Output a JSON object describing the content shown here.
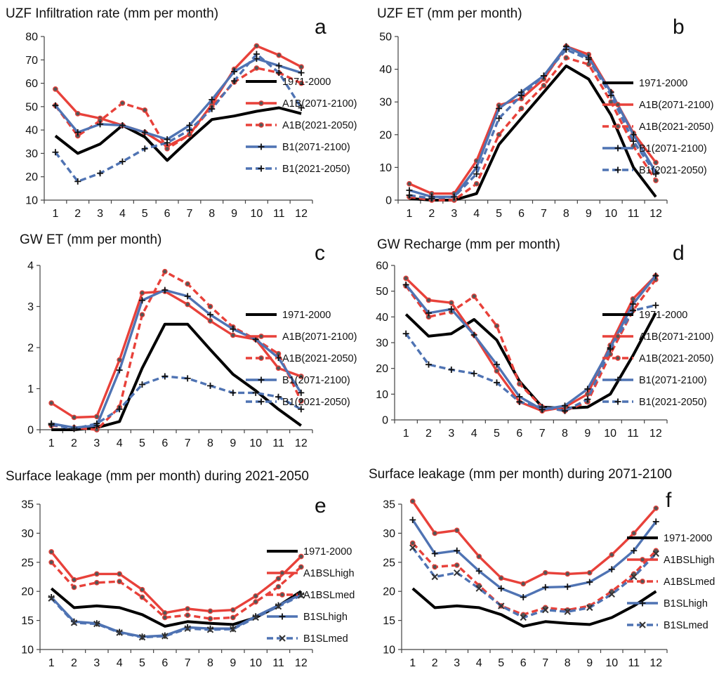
{
  "chart_data": [
    {
      "type": "line",
      "letter": "a",
      "title": "UZF Infiltration rate (mm per month)",
      "ylim": [
        10,
        80
      ],
      "yticks": [
        10,
        20,
        30,
        40,
        50,
        60,
        70,
        80
      ],
      "categories": [
        "1",
        "2",
        "3",
        "4",
        "5",
        "6",
        "7",
        "8",
        "9",
        "10",
        "11",
        "12"
      ],
      "series": [
        {
          "name": "1971-2000",
          "color": "#000000",
          "dash": false,
          "marker": "none",
          "values": [
            37.5,
            30,
            34,
            42,
            37,
            27,
            36,
            44.5,
            46,
            48,
            49.5,
            47
          ]
        },
        {
          "name": "A1B(2071-2100)",
          "color": "#e8413a",
          "dash": false,
          "marker": "circle",
          "values": [
            57.5,
            47,
            45,
            42,
            39,
            33,
            38,
            51,
            66,
            76,
            72,
            67
          ]
        },
        {
          "name": "A1B(2021-2050)",
          "color": "#e8413a",
          "dash": true,
          "marker": "circle",
          "values": [
            50.5,
            37.5,
            44,
            51.5,
            48.5,
            32,
            38,
            50,
            60.5,
            66.5,
            64.5,
            60
          ]
        },
        {
          "name": "B1(2071-2100)",
          "color": "#4f73b3",
          "dash": false,
          "marker": "plus",
          "values": [
            50.5,
            39,
            42.5,
            42,
            39,
            36,
            42,
            53,
            65,
            70.5,
            67.5,
            64.5
          ]
        },
        {
          "name": "B1(2021-2050)",
          "color": "#4f73b3",
          "dash": true,
          "marker": "plus",
          "values": [
            30.5,
            18,
            21.5,
            26.5,
            32,
            34.5,
            40,
            49,
            61,
            72.5,
            64.5,
            49.5
          ]
        }
      ]
    },
    {
      "type": "line",
      "letter": "b",
      "title": "UZF ET (mm per month)",
      "ylim": [
        0,
        50
      ],
      "yticks": [
        0,
        10,
        20,
        30,
        40,
        50
      ],
      "categories": [
        "1",
        "2",
        "3",
        "4",
        "5",
        "6",
        "7",
        "8",
        "9",
        "10",
        "11",
        "12"
      ],
      "series": [
        {
          "name": "1971-2000",
          "color": "#000000",
          "dash": false,
          "marker": "none",
          "values": [
            0.5,
            0,
            0,
            2,
            17,
            25,
            33,
            41,
            37,
            26,
            10,
            1
          ]
        },
        {
          "name": "A1B(2071-2100)",
          "color": "#e8413a",
          "dash": false,
          "marker": "circle",
          "values": [
            5,
            2,
            2,
            12,
            29,
            31,
            37,
            47,
            44.5,
            33,
            20.5,
            11.5
          ]
        },
        {
          "name": "A1B(2021-2050)",
          "color": "#e8413a",
          "dash": true,
          "marker": "circle",
          "values": [
            1,
            0,
            0,
            5,
            20,
            28,
            35,
            43.5,
            41.5,
            30,
            16.5,
            6
          ]
        },
        {
          "name": "B1(2071-2100)",
          "color": "#4f73b3",
          "dash": false,
          "marker": "plus",
          "values": [
            3,
            1,
            1,
            10,
            28,
            33,
            38,
            47,
            43.5,
            33,
            20,
            8.5
          ]
        },
        {
          "name": "B1(2021-2050)",
          "color": "#4f73b3",
          "dash": true,
          "marker": "plus",
          "values": [
            1.5,
            0.5,
            1,
            8,
            25,
            32,
            38,
            46,
            43,
            32,
            18,
            8
          ]
        }
      ]
    },
    {
      "type": "line",
      "letter": "c",
      "title": "GW ET (mm per month)",
      "ylim": [
        0,
        4
      ],
      "yticks": [
        0,
        1,
        2,
        3,
        4
      ],
      "categories": [
        "1",
        "2",
        "3",
        "4",
        "5",
        "6",
        "7",
        "8",
        "9",
        "10",
        "11",
        "12"
      ],
      "series": [
        {
          "name": "1971-2000",
          "color": "#000000",
          "dash": false,
          "marker": "none",
          "values": [
            0,
            0,
            0.05,
            0.2,
            1.5,
            2.57,
            2.57,
            1.95,
            1.35,
            0.95,
            0.5,
            0.1
          ]
        },
        {
          "name": "A1B(2071-2100)",
          "color": "#e8413a",
          "dash": false,
          "marker": "circle",
          "values": [
            0.65,
            0.3,
            0.32,
            1.7,
            3.33,
            3.37,
            3.05,
            2.65,
            2.3,
            2.2,
            1.5,
            1.3
          ]
        },
        {
          "name": "A1B(2021-2050)",
          "color": "#e8413a",
          "dash": true,
          "marker": "circle",
          "values": [
            0.1,
            0.05,
            0,
            0.55,
            2.8,
            3.85,
            3.55,
            3.0,
            2.5,
            2.2,
            1.85,
            0.7
          ]
        },
        {
          "name": "B1(2071-2100)",
          "color": "#4f73b3",
          "dash": false,
          "marker": "plus",
          "values": [
            0.15,
            0.05,
            0.1,
            1.45,
            3.15,
            3.4,
            3.25,
            2.8,
            2.45,
            2.2,
            1.75,
            0.9
          ]
        },
        {
          "name": "B1(2021-2050)",
          "color": "#4f73b3",
          "dash": true,
          "marker": "plus",
          "values": [
            0.12,
            0.02,
            0.15,
            0.5,
            1.1,
            1.3,
            1.25,
            1.07,
            0.9,
            0.9,
            0.8,
            0.5
          ]
        }
      ]
    },
    {
      "type": "line",
      "letter": "d",
      "title": "GW Recharge (mm per month)",
      "ylim": [
        0,
        60
      ],
      "yticks": [
        0,
        10,
        20,
        30,
        40,
        50,
        60
      ],
      "categories": [
        "1",
        "2",
        "3",
        "4",
        "5",
        "6",
        "7",
        "8",
        "9",
        "10",
        "11",
        "12"
      ],
      "series": [
        {
          "name": "1971-2000",
          "color": "#000000",
          "dash": false,
          "marker": "none",
          "values": [
            41,
            32.5,
            33.5,
            39,
            31,
            15,
            5,
            4.5,
            5,
            10,
            25,
            41.5
          ]
        },
        {
          "name": "A1B(2071-2100)",
          "color": "#e8413a",
          "dash": false,
          "marker": "circle",
          "values": [
            55,
            46.5,
            45.5,
            33,
            19,
            7,
            3.5,
            5,
            10,
            29,
            47,
            56
          ]
        },
        {
          "name": "A1B(2021-2050)",
          "color": "#e8413a",
          "dash": true,
          "marker": "circle",
          "values": [
            52,
            40,
            42,
            48,
            36.5,
            14,
            5,
            3.5,
            7,
            25.5,
            42.5,
            54.5
          ]
        },
        {
          "name": "B1(2071-2100)",
          "color": "#4f73b3",
          "dash": false,
          "marker": "plus",
          "values": [
            52.5,
            41.5,
            43,
            33,
            21.5,
            9,
            4,
            5.5,
            12,
            28,
            45,
            56
          ]
        },
        {
          "name": "B1(2021-2050)",
          "color": "#4f73b3",
          "dash": true,
          "marker": "plus",
          "values": [
            33.5,
            21.5,
            19.5,
            18,
            14.5,
            7,
            5,
            3.5,
            8,
            27.5,
            42.5,
            44.5
          ]
        }
      ]
    },
    {
      "type": "line",
      "letter": "e",
      "title": "Surface leakage (mm per month) during 2021-2050",
      "ylim": [
        10,
        35
      ],
      "yticks": [
        10,
        15,
        20,
        25,
        30,
        35
      ],
      "categories": [
        "1",
        "2",
        "3",
        "4",
        "5",
        "6",
        "7",
        "8",
        "9",
        "10",
        "11",
        "12"
      ],
      "series": [
        {
          "name": "1971-2000",
          "color": "#000000",
          "dash": false,
          "marker": "none",
          "values": [
            20.5,
            17.2,
            17.5,
            17.2,
            16,
            14,
            14.8,
            14.5,
            14.3,
            15.5,
            17.5,
            20
          ]
        },
        {
          "name": "A1BSLhigh",
          "color": "#e8413a",
          "dash": false,
          "marker": "circle",
          "values": [
            26.8,
            22,
            23,
            23,
            20.3,
            16.3,
            17,
            16.6,
            16.8,
            19.2,
            22.2,
            26
          ]
        },
        {
          "name": "A1BSLmed",
          "color": "#e8413a",
          "dash": true,
          "marker": "circle",
          "values": [
            25,
            20.7,
            21.5,
            21.7,
            19,
            15.5,
            15.9,
            15.3,
            15.5,
            18.2,
            20.8,
            24.2
          ]
        },
        {
          "name": "B1SLhigh",
          "color": "#4f73b3",
          "dash": false,
          "marker": "plus",
          "values": [
            19,
            14.8,
            14.5,
            13,
            12.2,
            12.4,
            13.8,
            13.6,
            13.6,
            15.7,
            17.6,
            19.5
          ]
        },
        {
          "name": "B1SLmed",
          "color": "#4f73b3",
          "dash": true,
          "marker": "x",
          "values": [
            18.8,
            14.6,
            14.4,
            12.9,
            12.1,
            12.3,
            13.6,
            13.4,
            13.5,
            15.5,
            17.4,
            19.3
          ]
        }
      ]
    },
    {
      "type": "line",
      "letter": "f",
      "title": "Surface leakage (mm per month) during 2071-2100",
      "ylim": [
        10,
        35
      ],
      "yticks": [
        10,
        15,
        20,
        25,
        30,
        35
      ],
      "categories": [
        "1",
        "2",
        "3",
        "4",
        "5",
        "6",
        "7",
        "8",
        "9",
        "10",
        "11",
        "12"
      ],
      "series": [
        {
          "name": "1971-2000",
          "color": "#000000",
          "dash": false,
          "marker": "none",
          "values": [
            20.5,
            17.2,
            17.5,
            17.2,
            16,
            14,
            14.8,
            14.5,
            14.3,
            15.5,
            17.5,
            20
          ]
        },
        {
          "name": "A1BSLhigh",
          "color": "#e8413a",
          "dash": false,
          "marker": "circle",
          "values": [
            35.5,
            30,
            30.5,
            26,
            22.3,
            21.3,
            23.2,
            23,
            23.2,
            26.3,
            30,
            34.3
          ]
        },
        {
          "name": "A1BSLmed",
          "color": "#e8413a",
          "dash": true,
          "marker": "circle",
          "values": [
            28.3,
            24.2,
            24.5,
            21,
            17.5,
            16,
            17.2,
            16.8,
            17.5,
            20,
            23,
            27
          ]
        },
        {
          "name": "B1SLhigh",
          "color": "#4f73b3",
          "dash": false,
          "marker": "plus",
          "values": [
            32.3,
            26.5,
            27,
            23.5,
            20.5,
            19,
            20.7,
            20.8,
            21.6,
            23.8,
            27,
            32
          ]
        },
        {
          "name": "B1SLmed",
          "color": "#4f73b3",
          "dash": true,
          "marker": "x",
          "values": [
            27.5,
            22.5,
            23.2,
            20.5,
            17.5,
            15.5,
            16.8,
            16.5,
            17.2,
            19.5,
            22.5,
            26.5
          ]
        }
      ]
    }
  ]
}
